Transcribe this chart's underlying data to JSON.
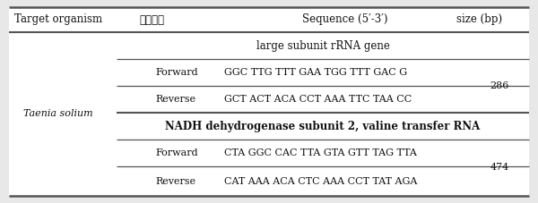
{
  "header": [
    "Target organism",
    "프라이머",
    "Sequence (5′-3′)",
    "size (bp)"
  ],
  "organism": "Taenia solium",
  "group1_header": "large subunit rRNA gene",
  "group1_rows": [
    [
      "Forward",
      "GGC TTG TTT GAA TGG TTT GAC G"
    ],
    [
      "Reverse",
      "GCT ACT ACA CCT AAA TTC TAA CC"
    ]
  ],
  "group1_size": "286",
  "group2_header": "NADH dehydrogenase subunit 2, valine transfer RNA",
  "group2_rows": [
    [
      "Forward",
      "CTA GGC CAC TTA GTA GTT TAG TTA"
    ],
    [
      "Reverse",
      "CAT AAA ACA CTC AAA CCT TAT AGA"
    ]
  ],
  "group2_size": "474",
  "outer_bg": "#e8e8e8",
  "inner_bg": "#ffffff",
  "line_color": "#555555",
  "text_color": "#111111",
  "header_fontsize": 8.5,
  "body_fontsize": 8.0,
  "group_header_fontsize": 8.5
}
